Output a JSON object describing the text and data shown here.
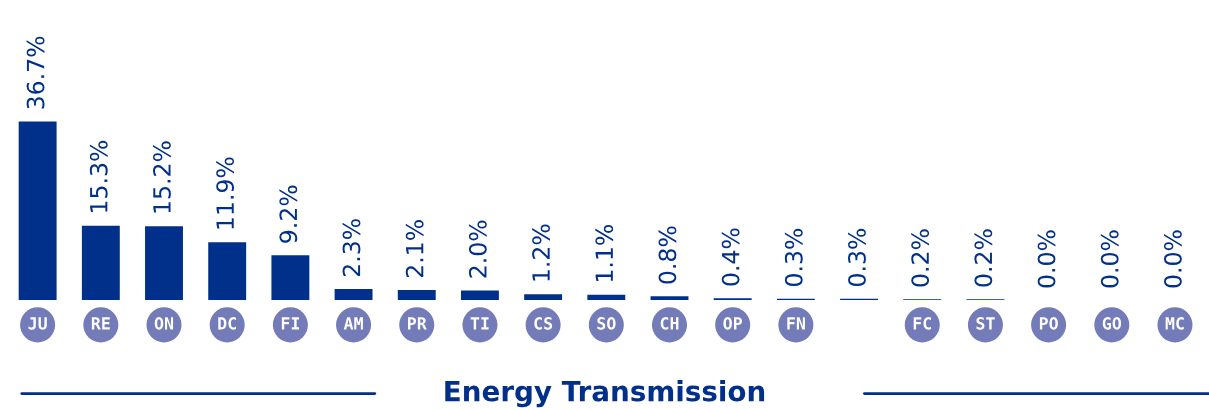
{
  "chart_data": {
    "type": "bar",
    "categories": [
      "JU",
      "RE",
      "ON",
      "DC",
      "FI",
      "AM",
      "PR",
      "TI",
      "CS",
      "SO",
      "CH",
      "OP",
      "FN",
      null,
      "FC",
      "ST",
      "PO",
      "GO",
      "MC"
    ],
    "values": [
      36.7,
      15.3,
      15.2,
      11.9,
      9.2,
      2.3,
      2.1,
      2.0,
      1.2,
      1.1,
      0.8,
      0.4,
      0.3,
      0.3,
      0.2,
      0.2,
      0.0,
      0.0,
      0.0
    ],
    "value_labels": [
      "36.7%",
      "15.3%",
      "15.2%",
      "11.9%",
      "9.2%",
      "2.3%",
      "2.1%",
      "2.0%",
      "1.2%",
      "1.1%",
      "0.8%",
      "0.4%",
      "0.3%",
      "0.3%",
      "0.2%",
      "0.2%",
      "0.0%",
      "0.0%",
      "0.0%"
    ],
    "color": "#00308a",
    "xlabel": "Energy Transmission",
    "grid": false,
    "legend": false
  }
}
